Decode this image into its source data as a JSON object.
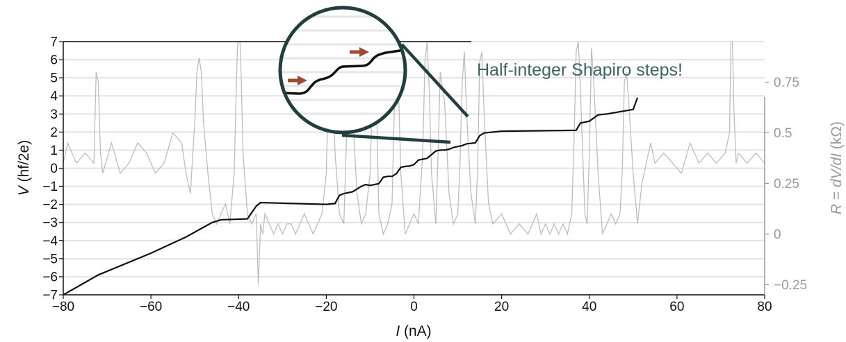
{
  "chart_data": {
    "type": "line",
    "xlabel_italic": "I",
    "xlabel_unit": " (nA)",
    "ylabel_italic": "V",
    "ylabel_unit": " (hf/2e)",
    "y2label_italic": "R",
    "y2label_mid": " = ",
    "y2label_italic2": "dV/dI",
    "y2label_unit": " (kΩ)",
    "xlim": [
      -80,
      80
    ],
    "ylim": [
      -7,
      7
    ],
    "y2lim": [
      -0.3,
      0.95
    ],
    "xticks": [
      "−80",
      "−60",
      "−40",
      "−20",
      "0",
      "20",
      "40",
      "60",
      "80"
    ],
    "yticks": [
      "−7",
      "−6",
      "−5",
      "−4",
      "−3",
      "−2",
      "−1",
      "0",
      "1",
      "2",
      "3",
      "4",
      "5",
      "6",
      "7"
    ],
    "y2ticks": [
      "−0.25",
      "0",
      "0.25",
      "0.5",
      "0.75"
    ],
    "grid": true,
    "annotation": "Half-integer Shapiro steps!",
    "series": [
      {
        "axis": "left",
        "color": "#111111",
        "x": [
          -80,
          -72,
          -60,
          -52,
          -46,
          -44,
          -38,
          -36,
          -35,
          -20,
          -18,
          -17,
          -16,
          -14,
          -12,
          -11,
          -10,
          -8,
          -7,
          -6,
          -5,
          -4,
          -3,
          -2,
          -1,
          0,
          1,
          2,
          3,
          4,
          5,
          6,
          7,
          8,
          9,
          10,
          11,
          12,
          14,
          15,
          16,
          20,
          37,
          38,
          40,
          42,
          44,
          50,
          51
        ],
        "y": [
          -7,
          -5.9,
          -4.7,
          -3.8,
          -3.0,
          -2.85,
          -2.8,
          -2.1,
          -1.9,
          -2.0,
          -1.95,
          -1.5,
          -1.4,
          -1.3,
          -1.0,
          -0.9,
          -0.95,
          -0.85,
          -0.5,
          -0.45,
          -0.45,
          -0.3,
          0.05,
          0.1,
          0.12,
          0.2,
          0.45,
          0.5,
          0.55,
          0.75,
          0.95,
          1.0,
          1.0,
          1.05,
          1.15,
          1.2,
          1.25,
          1.35,
          1.4,
          1.8,
          1.95,
          2.05,
          2.1,
          2.5,
          2.6,
          2.95,
          3.0,
          3.25,
          3.9
        ]
      },
      {
        "axis": "right",
        "color": "#bdbdbd",
        "x": [
          -80,
          -79,
          -77,
          -75,
          -73,
          -72.5,
          -72,
          -71.5,
          -71,
          -69,
          -67,
          -65,
          -63,
          -61,
          -59,
          -57,
          -55,
          -53,
          -52,
          -51,
          -50,
          -49.5,
          -49,
          -48.5,
          -48,
          -47,
          -46,
          -45,
          -44,
          -43,
          -42,
          -41,
          -40.5,
          -40,
          -39.5,
          -39,
          -38,
          -37,
          -36,
          -35.5,
          -35,
          -34.5,
          -34,
          -33,
          -32,
          -31,
          -30,
          -29,
          -28,
          -27,
          -26,
          -25,
          -24,
          -23,
          -22,
          -21,
          -20,
          -19.5,
          -19,
          -18.5,
          -18,
          -17,
          -16,
          -15.5,
          -15,
          -14.5,
          -14,
          -13,
          -12,
          -11,
          -10,
          -9.5,
          -9,
          -8.5,
          -8,
          -7,
          -6,
          -5,
          -4.5,
          -4,
          -3.5,
          -3,
          -2,
          -1,
          0,
          1,
          2,
          2.5,
          3,
          3.5,
          4,
          5,
          5.5,
          6,
          7,
          8,
          9,
          10,
          10.5,
          11,
          11.5,
          12,
          13,
          14,
          14.5,
          15,
          15.5,
          16,
          17,
          18,
          20,
          22,
          24,
          26,
          27,
          28,
          29,
          30,
          31,
          32,
          33,
          34,
          35,
          36,
          36.5,
          37,
          37.5,
          38,
          39,
          39.5,
          40,
          40.5,
          41,
          42,
          43,
          44,
          45,
          46,
          47,
          47.5,
          48,
          48.5,
          49,
          50,
          51,
          52,
          53,
          54,
          55,
          57,
          59,
          61,
          63,
          65,
          67,
          69,
          71,
          72,
          72.3,
          72.6,
          73,
          73.5,
          74,
          76,
          78,
          80
        ],
        "y": [
          0.35,
          0.45,
          0.35,
          0.4,
          0.35,
          0.8,
          0.75,
          0.4,
          0.3,
          0.45,
          0.3,
          0.35,
          0.45,
          0.4,
          0.3,
          0.35,
          0.5,
          0.45,
          0.3,
          0.2,
          0.55,
          0.8,
          0.87,
          0.8,
          0.55,
          0.3,
          0.1,
          0.05,
          0.1,
          0.15,
          0.05,
          0.3,
          0.75,
          1.1,
          0.85,
          0.4,
          0.1,
          0.05,
          0.1,
          -0.25,
          0.05,
          0.0,
          0.1,
          0.05,
          0.0,
          0.05,
          0.0,
          0.05,
          0.05,
          0.0,
          0.05,
          0.1,
          0.05,
          0.0,
          0.05,
          0.1,
          0.3,
          0.75,
          0.95,
          0.8,
          0.4,
          0.1,
          0.05,
          0.4,
          0.85,
          0.95,
          0.6,
          0.2,
          0.05,
          0.1,
          0.3,
          0.7,
          0.85,
          0.6,
          0.1,
          0.0,
          0.05,
          0.15,
          0.6,
          0.85,
          0.7,
          0.3,
          0.0,
          0.05,
          0.1,
          0.05,
          0.4,
          0.85,
          0.95,
          0.7,
          0.3,
          0.05,
          0.4,
          0.8,
          0.65,
          0.2,
          0.05,
          0.1,
          0.35,
          0.75,
          0.9,
          0.6,
          0.2,
          0.05,
          0.3,
          0.85,
          0.9,
          0.6,
          0.15,
          0.05,
          0.1,
          0.0,
          0.05,
          0.0,
          0.05,
          0.1,
          0.0,
          0.05,
          0.0,
          0.05,
          0.0,
          0.05,
          0.0,
          0.1,
          0.45,
          0.9,
          0.95,
          0.7,
          0.1,
          0.05,
          0.4,
          0.92,
          0.75,
          0.3,
          0.0,
          0.05,
          0.1,
          0.05,
          0.1,
          0.3,
          0.75,
          0.8,
          0.65,
          0.3,
          0.05,
          0.25,
          0.35,
          0.45,
          0.35,
          0.4,
          0.35,
          0.3,
          0.45,
          0.35,
          0.4,
          0.35,
          0.4,
          0.5,
          0.95,
          1.0,
          0.6,
          0.35,
          0.4,
          0.35,
          0.4,
          0.35
        ]
      }
    ]
  }
}
